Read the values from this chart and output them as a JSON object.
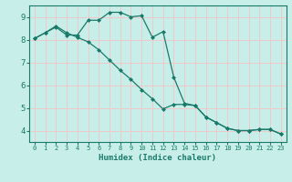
{
  "xlabel": "Humidex (Indice chaleur)",
  "bg_color": "#c8eeea",
  "grid_color": "#f0c8c8",
  "line_color": "#1a7a6a",
  "xlim": [
    -0.5,
    23.5
  ],
  "ylim": [
    3.5,
    9.5
  ],
  "yticks": [
    4,
    5,
    6,
    7,
    8,
    9
  ],
  "xticks": [
    0,
    1,
    2,
    3,
    4,
    5,
    6,
    7,
    8,
    9,
    10,
    11,
    12,
    13,
    14,
    15,
    16,
    17,
    18,
    19,
    20,
    21,
    22,
    23
  ],
  "line1_x": [
    0,
    1,
    2,
    3,
    4,
    5,
    6,
    7,
    8,
    9,
    10,
    11,
    12,
    13,
    14,
    15,
    16,
    17,
    18,
    19,
    20,
    21,
    22,
    23
  ],
  "line1_y": [
    8.05,
    8.3,
    8.55,
    8.2,
    8.2,
    8.85,
    8.85,
    9.2,
    9.2,
    9.0,
    9.05,
    8.1,
    8.35,
    6.35,
    5.2,
    5.1,
    4.6,
    4.35,
    4.1,
    4.0,
    4.0,
    4.05,
    4.05,
    3.85
  ],
  "line2_x": [
    0,
    1,
    2,
    3,
    4,
    5,
    6,
    7,
    8,
    9,
    10,
    11,
    12,
    13,
    14,
    15,
    16,
    17,
    18,
    19,
    20,
    21,
    22,
    23
  ],
  "line2_y": [
    8.05,
    8.3,
    8.6,
    8.3,
    8.1,
    7.9,
    7.55,
    7.1,
    6.65,
    6.25,
    5.8,
    5.4,
    4.95,
    5.15,
    5.15,
    5.1,
    4.6,
    4.35,
    4.1,
    4.0,
    4.0,
    4.05,
    4.05,
    3.85
  ]
}
